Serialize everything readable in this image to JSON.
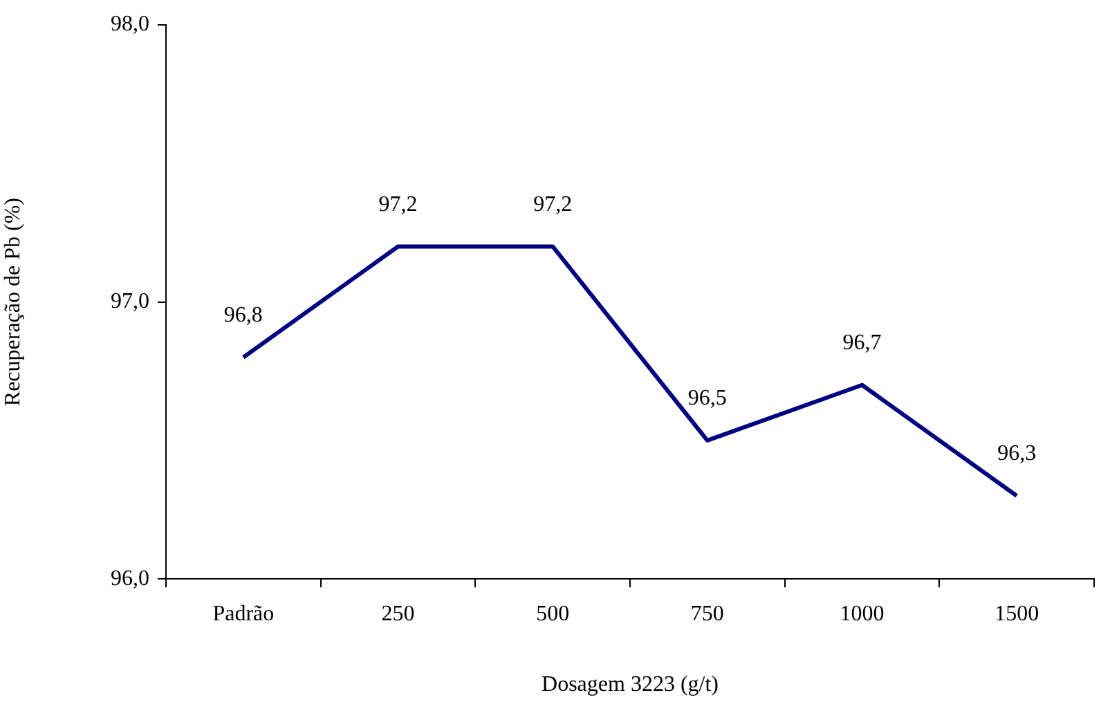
{
  "chart_data": {
    "type": "line",
    "xlabel": "Dosagem 3223 (g/t)",
    "ylabel": "Recuperação de Pb (%)",
    "categories": [
      "Padrão",
      "250",
      "500",
      "750",
      "1000",
      "1500"
    ],
    "series": [
      {
        "color": "#000080",
        "values": [
          96.8,
          97.2,
          97.2,
          96.5,
          96.7,
          96.3
        ],
        "value_labels": [
          "96,8",
          "97,2",
          "97,2",
          "96,5",
          "96,7",
          "96,3"
        ]
      }
    ],
    "ylim": [
      96,
      98
    ],
    "yticks": [
      {
        "value": 96,
        "label": "96,0"
      },
      {
        "value": 97,
        "label": "97,0"
      },
      {
        "value": 98,
        "label": "98,0"
      }
    ],
    "grid": false,
    "legend": false,
    "marker": "none",
    "line_style": "solid"
  }
}
